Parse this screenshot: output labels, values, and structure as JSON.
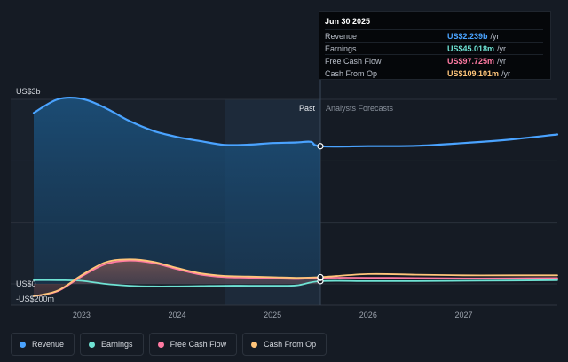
{
  "tooltip": {
    "date": "Jun 30 2025",
    "rows": [
      {
        "label": "Revenue",
        "value": "US$2.239b",
        "unit": "/yr",
        "color": "#4aa3ff"
      },
      {
        "label": "Earnings",
        "value": "US$45.018m",
        "unit": "/yr",
        "color": "#6fe3d4"
      },
      {
        "label": "Free Cash Flow",
        "value": "US$97.725m",
        "unit": "/yr",
        "color": "#ff7aa2"
      },
      {
        "label": "Cash From Op",
        "value": "US$109.101m",
        "unit": "/yr",
        "color": "#ffc57a"
      }
    ]
  },
  "chart_data": {
    "type": "line",
    "title": "",
    "y_axis_labels": [
      "US$3b",
      "US$0",
      "-US$200m"
    ],
    "ylim": [
      -200,
      3000
    ],
    "x_ticks": [
      "2023",
      "2024",
      "2025",
      "2026",
      "2027"
    ],
    "xlim": [
      2022.5,
      2027.98
    ],
    "divider_x": 2025.5,
    "past_label": "Past",
    "forecast_label": "Analysts Forecasts",
    "series": [
      {
        "name": "Revenue",
        "color": "#4aa3ff",
        "area": true,
        "x": [
          2022.5,
          2022.75,
          2023.0,
          2023.25,
          2023.5,
          2023.75,
          2024.0,
          2024.25,
          2024.5,
          2024.75,
          2025.0,
          2025.25,
          2025.4,
          2025.5,
          2026.0,
          2026.5,
          2027.0,
          2027.5,
          2027.98
        ],
        "y": [
          2780,
          3000,
          3010,
          2860,
          2650,
          2490,
          2390,
          2320,
          2260,
          2265,
          2290,
          2300,
          2310,
          2239,
          2240,
          2245,
          2290,
          2350,
          2430
        ]
      },
      {
        "name": "Earnings",
        "color": "#6fe3d4",
        "area": false,
        "x": [
          2022.5,
          2022.75,
          2023.0,
          2023.25,
          2023.5,
          2023.75,
          2024.0,
          2024.25,
          2024.5,
          2024.75,
          2025.0,
          2025.25,
          2025.5,
          2026.0,
          2026.5,
          2027.0,
          2027.5,
          2027.98
        ],
        "y": [
          60,
          60,
          50,
          0,
          -30,
          -40,
          -40,
          -35,
          -30,
          -30,
          -30,
          -25,
          45,
          45,
          45,
          50,
          55,
          60
        ]
      },
      {
        "name": "Free Cash Flow",
        "color": "#ff7aa2",
        "area": false,
        "x": [
          2022.5,
          2022.75,
          2023.0,
          2023.25,
          2023.5,
          2023.75,
          2024.0,
          2024.25,
          2024.5,
          2024.75,
          2025.0,
          2025.25,
          2025.5,
          2026.0,
          2026.5,
          2027.0,
          2027.5,
          2027.98
        ],
        "y": [
          -200,
          -120,
          120,
          320,
          380,
          340,
          240,
          150,
          110,
          100,
          90,
          80,
          97.7,
          100,
          95,
          90,
          92,
          95
        ]
      },
      {
        "name": "Cash From Op",
        "color": "#ffc57a",
        "area": true,
        "x": [
          2022.5,
          2022.75,
          2023.0,
          2023.25,
          2023.5,
          2023.75,
          2024.0,
          2024.25,
          2024.5,
          2024.75,
          2025.0,
          2025.25,
          2025.5,
          2026.0,
          2026.5,
          2027.0,
          2027.5,
          2027.98
        ],
        "y": [
          -200,
          -110,
          140,
          350,
          400,
          360,
          260,
          170,
          130,
          120,
          110,
          100,
          109.1,
          160,
          150,
          140,
          140,
          140
        ]
      }
    ]
  },
  "legend": [
    {
      "label": "Revenue",
      "color": "#4aa3ff"
    },
    {
      "label": "Earnings",
      "color": "#6fe3d4"
    },
    {
      "label": "Free Cash Flow",
      "color": "#ff7aa2"
    },
    {
      "label": "Cash From Op",
      "color": "#ffc57a"
    }
  ]
}
